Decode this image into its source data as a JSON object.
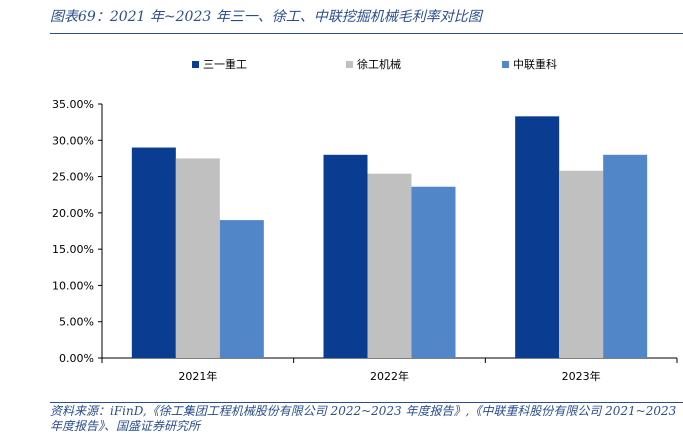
{
  "header": {
    "title": "图表69：2021 年~2023 年三一、徐工、中联挖掘机械毛利率对比图"
  },
  "footer": {
    "source": "资料来源：iFinD,《徐工集团工程机械股份有限公司 2022~2023 年度报告》,《中联重科股份有限公司 2021~2023 年度报告》、国盛证券研究所"
  },
  "colors": {
    "accent": "#2a4d8f",
    "series": [
      "#0a3d91",
      "#c0c0c0",
      "#5186c9"
    ]
  },
  "chart_data": {
    "type": "bar",
    "categories": [
      "2021年",
      "2022年",
      "2023年"
    ],
    "series": [
      {
        "name": "三一重工",
        "values": [
          29.0,
          28.0,
          33.3
        ]
      },
      {
        "name": "徐工机械",
        "values": [
          27.5,
          25.4,
          25.8
        ]
      },
      {
        "name": "中联重科",
        "values": [
          19.0,
          23.6,
          28.0
        ]
      }
    ],
    "ylim": [
      0,
      35
    ],
    "yticks": [
      0,
      5,
      10,
      15,
      20,
      25,
      30,
      35
    ],
    "ytick_labels": [
      "0.00%",
      "5.00%",
      "10.00%",
      "15.00%",
      "20.00%",
      "25.00%",
      "30.00%",
      "35.00%"
    ],
    "legend": "top-center",
    "grid": false
  }
}
